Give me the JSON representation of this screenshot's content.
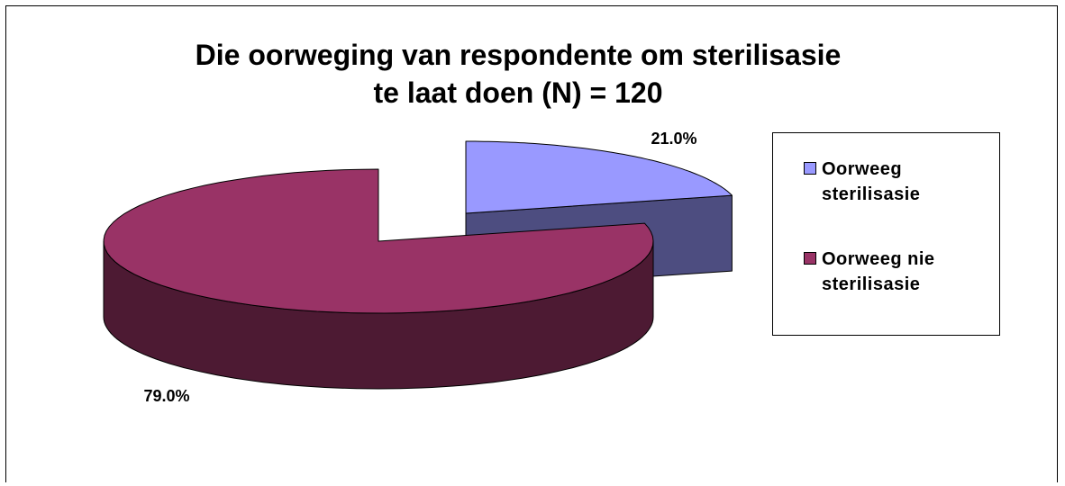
{
  "chart_data": {
    "type": "pie",
    "title": "Die oorweging van respondente om sterilisasie te laat doen (N) = 120",
    "categories": [
      "Oorweeg sterilisasie",
      "Oorweeg nie sterilisasie"
    ],
    "values": [
      21,
      79
    ],
    "value_labels": [
      "21.0%",
      "79.0%"
    ],
    "colors": [
      "#9999ff",
      "#993366"
    ],
    "legend": "right"
  }
}
